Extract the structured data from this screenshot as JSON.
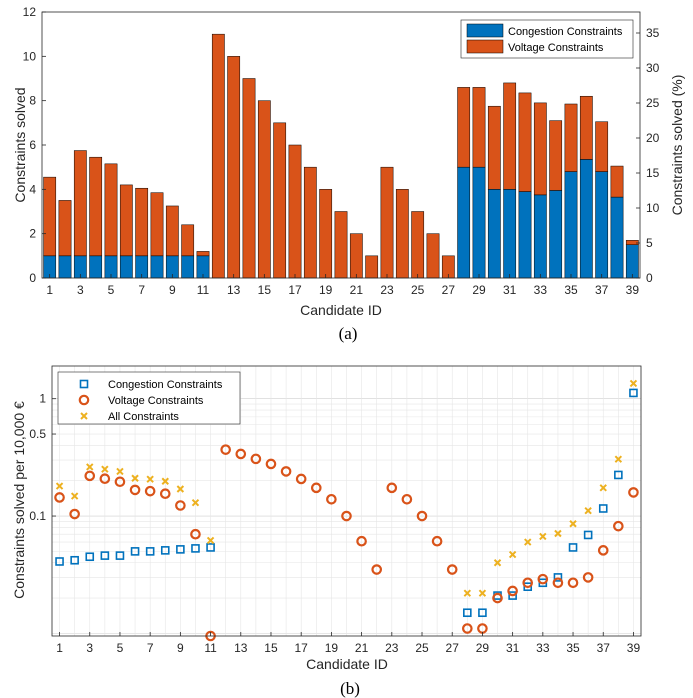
{
  "colors": {
    "congestion": "#0072BD",
    "voltage": "#D95319",
    "all": "#EDB120",
    "axis": "#262626",
    "grid": "#d9d9d9"
  },
  "chart_data": [
    {
      "type": "bar",
      "stacked": true,
      "panel_label": "(a)",
      "xlabel": "Candidate ID",
      "ylabel": "Constraints solved",
      "ylabel_right": "Constraints solved (%)",
      "ylim": [
        0,
        12
      ],
      "ylim_right": [
        0,
        38.0
      ],
      "yticks": [
        0,
        2,
        4,
        6,
        8,
        10,
        12
      ],
      "yticks_right": [
        0,
        5,
        10,
        15,
        20,
        25,
        30,
        35
      ],
      "xticks": [
        1,
        3,
        5,
        7,
        9,
        11,
        13,
        15,
        17,
        19,
        21,
        23,
        25,
        27,
        29,
        31,
        33,
        35,
        37,
        39
      ],
      "categories": [
        1,
        2,
        3,
        4,
        5,
        6,
        7,
        8,
        9,
        10,
        11,
        12,
        13,
        14,
        15,
        16,
        17,
        18,
        19,
        20,
        21,
        22,
        23,
        24,
        25,
        26,
        27,
        28,
        29,
        30,
        31,
        32,
        33,
        34,
        35,
        36,
        37,
        38,
        39
      ],
      "legend_position": "top-right",
      "grid": false,
      "series": [
        {
          "name": "Congestion Constraints",
          "color_key": "congestion",
          "values": [
            1,
            1,
            1,
            1,
            1,
            1,
            1,
            1,
            1,
            1,
            1,
            0,
            0,
            0,
            0,
            0,
            0,
            0,
            0,
            0,
            0,
            0,
            0,
            0,
            0,
            0,
            0,
            5,
            5,
            4,
            4,
            3.9,
            3.75,
            3.95,
            4.8,
            5.35,
            4.8,
            3.65,
            1.5
          ]
        },
        {
          "name": "Voltage Constraints",
          "color_key": "voltage",
          "values": [
            3.55,
            2.5,
            4.75,
            4.45,
            4.15,
            3.2,
            3.05,
            2.85,
            2.25,
            1.4,
            0.2,
            11,
            10,
            9,
            8,
            7,
            6,
            5,
            4,
            3,
            2,
            1,
            5,
            4,
            3,
            2,
            1,
            3.6,
            3.6,
            3.75,
            4.8,
            4.45,
            4.15,
            3.15,
            3.05,
            2.85,
            2.25,
            1.4,
            0.2
          ]
        }
      ]
    },
    {
      "type": "scatter",
      "panel_label": "(b)",
      "xlabel": "Candidate ID",
      "ylabel": "Constraints solved per 10,000 €",
      "yscale": "log",
      "ylim": [
        0.0095,
        1.9
      ],
      "yticks": [
        0.1,
        0.5,
        1
      ],
      "ytick_labels": [
        "0.1",
        "0.5",
        "1"
      ],
      "xlim": [
        0.5,
        39.5
      ],
      "xticks": [
        1,
        3,
        5,
        7,
        9,
        11,
        13,
        15,
        17,
        19,
        21,
        23,
        25,
        27,
        29,
        31,
        33,
        35,
        37,
        39
      ],
      "legend_position": "top-left",
      "grid": true,
      "series": [
        {
          "name": "Congestion Constraints",
          "marker": "square",
          "color_key": "congestion",
          "x": [
            1,
            2,
            3,
            4,
            5,
            6,
            7,
            8,
            9,
            10,
            11,
            28,
            29,
            30,
            31,
            32,
            33,
            34,
            35,
            36,
            37,
            38,
            39
          ],
          "y": [
            0.041,
            0.042,
            0.045,
            0.046,
            0.046,
            0.05,
            0.05,
            0.051,
            0.052,
            0.053,
            0.054,
            0.015,
            0.015,
            0.021,
            0.021,
            0.025,
            0.027,
            0.03,
            0.054,
            0.069,
            0.116,
            0.224,
            1.12
          ]
        },
        {
          "name": "Voltage Constraints",
          "marker": "circle",
          "color_key": "voltage",
          "x": [
            1,
            2,
            3,
            4,
            5,
            6,
            7,
            8,
            9,
            10,
            11,
            12,
            13,
            14,
            15,
            16,
            17,
            18,
            19,
            20,
            21,
            22,
            23,
            24,
            25,
            26,
            27,
            28,
            29,
            30,
            31,
            32,
            33,
            34,
            35,
            36,
            37,
            38,
            39
          ],
          "y": [
            0.144,
            0.104,
            0.22,
            0.208,
            0.196,
            0.167,
            0.163,
            0.155,
            0.123,
            0.07,
            0.0095,
            0.368,
            0.338,
            0.307,
            0.278,
            0.24,
            0.207,
            0.174,
            0.139,
            0.1,
            0.061,
            0.035,
            0.174,
            0.139,
            0.1,
            0.061,
            0.035,
            0.011,
            0.011,
            0.02,
            0.023,
            0.027,
            0.029,
            0.027,
            0.027,
            0.03,
            0.051,
            0.082,
            0.159
          ]
        },
        {
          "name": "All Constraints",
          "marker": "x",
          "color_key": "all",
          "x": [
            1,
            2,
            3,
            4,
            5,
            6,
            7,
            8,
            9,
            10,
            11,
            28,
            29,
            30,
            31,
            32,
            33,
            34,
            35,
            36,
            37,
            38,
            39
          ],
          "y": [
            0.18,
            0.148,
            0.262,
            0.251,
            0.24,
            0.21,
            0.206,
            0.198,
            0.17,
            0.13,
            0.062,
            0.022,
            0.022,
            0.04,
            0.047,
            0.06,
            0.067,
            0.071,
            0.086,
            0.111,
            0.174,
            0.305,
            1.35
          ]
        }
      ]
    }
  ]
}
